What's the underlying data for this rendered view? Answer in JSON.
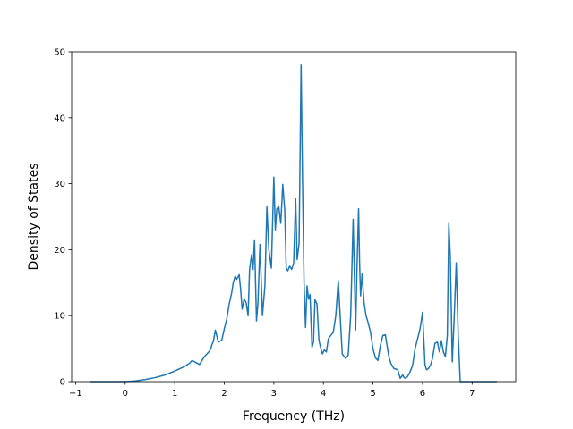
{
  "chart_data": {
    "type": "line",
    "title": "",
    "xlabel": "Frequency (THz)",
    "ylabel": "Density of States",
    "xlim": [
      -1.08,
      7.88
    ],
    "ylim": [
      0,
      50
    ],
    "xticks": [
      -1,
      0,
      1,
      2,
      3,
      4,
      5,
      6,
      7
    ],
    "xtick_labels": [
      "−1",
      "0",
      "1",
      "2",
      "3",
      "4",
      "5",
      "6",
      "7"
    ],
    "yticks": [
      0,
      10,
      20,
      30,
      40,
      50
    ],
    "ytick_labels": [
      "0",
      "10",
      "20",
      "30",
      "40",
      "50"
    ],
    "grid": false,
    "line_color": "#1f77b4",
    "series": [
      {
        "x": [
          -0.7,
          -0.3,
          0.0,
          0.2,
          0.4,
          0.6,
          0.8,
          1.0,
          1.2,
          1.3,
          1.35,
          1.45,
          1.5,
          1.6,
          1.65,
          1.7,
          1.73,
          1.75,
          1.78,
          1.82,
          1.88,
          1.95,
          2.0,
          2.05,
          2.1,
          2.15,
          2.18,
          2.22,
          2.25,
          2.3,
          2.33,
          2.36,
          2.4,
          2.44,
          2.48,
          2.51,
          2.55,
          2.58,
          2.61,
          2.65,
          2.68,
          2.72,
          2.77,
          2.82,
          2.86,
          2.9,
          2.95,
          3.0,
          3.03,
          3.06,
          3.1,
          3.14,
          3.18,
          3.22,
          3.25,
          3.28,
          3.32,
          3.36,
          3.4,
          3.44,
          3.47,
          3.51,
          3.55,
          3.58,
          3.61,
          3.64,
          3.67,
          3.7,
          3.73,
          3.77,
          3.8,
          3.83,
          3.87,
          3.91,
          3.95,
          3.98,
          4.02,
          4.06,
          4.1,
          4.15,
          4.2,
          4.25,
          4.3,
          4.38,
          4.45,
          4.5,
          4.55,
          4.6,
          4.65,
          4.68,
          4.71,
          4.73,
          4.75,
          4.78,
          4.82,
          4.86,
          4.9,
          4.95,
          5.0,
          5.05,
          5.1,
          5.15,
          5.2,
          5.25,
          5.32,
          5.36,
          5.42,
          5.5,
          5.55,
          5.6,
          5.63,
          5.66,
          5.7,
          5.75,
          5.8,
          5.85,
          5.9,
          5.95,
          6.0,
          6.05,
          6.08,
          6.12,
          6.16,
          6.2,
          6.25,
          6.3,
          6.34,
          6.38,
          6.42,
          6.46,
          6.5,
          6.53,
          6.56,
          6.6,
          6.64,
          6.68,
          6.72,
          6.76,
          6.8,
          6.85,
          7.0,
          7.2,
          7.5
        ],
        "y": [
          0,
          0,
          0,
          0.1,
          0.3,
          0.6,
          1.0,
          1.6,
          2.3,
          2.8,
          3.2,
          2.8,
          2.6,
          3.8,
          4.2,
          4.6,
          5.0,
          5.6,
          6.1,
          7.8,
          6.0,
          6.3,
          8.0,
          9.5,
          11.8,
          13.5,
          15.0,
          16.0,
          15.5,
          16.2,
          14.0,
          11.0,
          12.5,
          12.0,
          10.0,
          17.0,
          19.2,
          17.0,
          21.5,
          9.2,
          12.0,
          20.8,
          10.0,
          14.5,
          26.5,
          20.0,
          17.2,
          31.0,
          23.0,
          26.2,
          26.5,
          24.0,
          29.9,
          26.0,
          17.2,
          16.8,
          17.5,
          17.0,
          18.0,
          27.8,
          18.5,
          21.0,
          48.0,
          30.0,
          15.0,
          8.2,
          14.5,
          12.5,
          13.2,
          5.2,
          6.0,
          12.4,
          11.8,
          6.2,
          5.0,
          4.2,
          4.8,
          4.5,
          6.5,
          7.0,
          7.5,
          10.0,
          15.3,
          4.2,
          3.5,
          4.0,
          10.0,
          24.6,
          7.8,
          18.0,
          26.2,
          18.0,
          13.0,
          16.3,
          12.0,
          10.0,
          9.0,
          7.5,
          5.0,
          3.6,
          3.2,
          5.5,
          7.0,
          7.1,
          3.8,
          2.8,
          2.0,
          1.8,
          0.5,
          1.0,
          0.6,
          0.5,
          0.8,
          1.5,
          2.5,
          5.0,
          6.5,
          8.0,
          10.5,
          2.5,
          1.8,
          2.0,
          2.5,
          3.5,
          5.8,
          6.0,
          4.5,
          6.2,
          4.5,
          3.8,
          7.0,
          24.1,
          19.0,
          3.0,
          10.0,
          18.0,
          7.0,
          0,
          0,
          0,
          0,
          0,
          0
        ]
      }
    ]
  }
}
